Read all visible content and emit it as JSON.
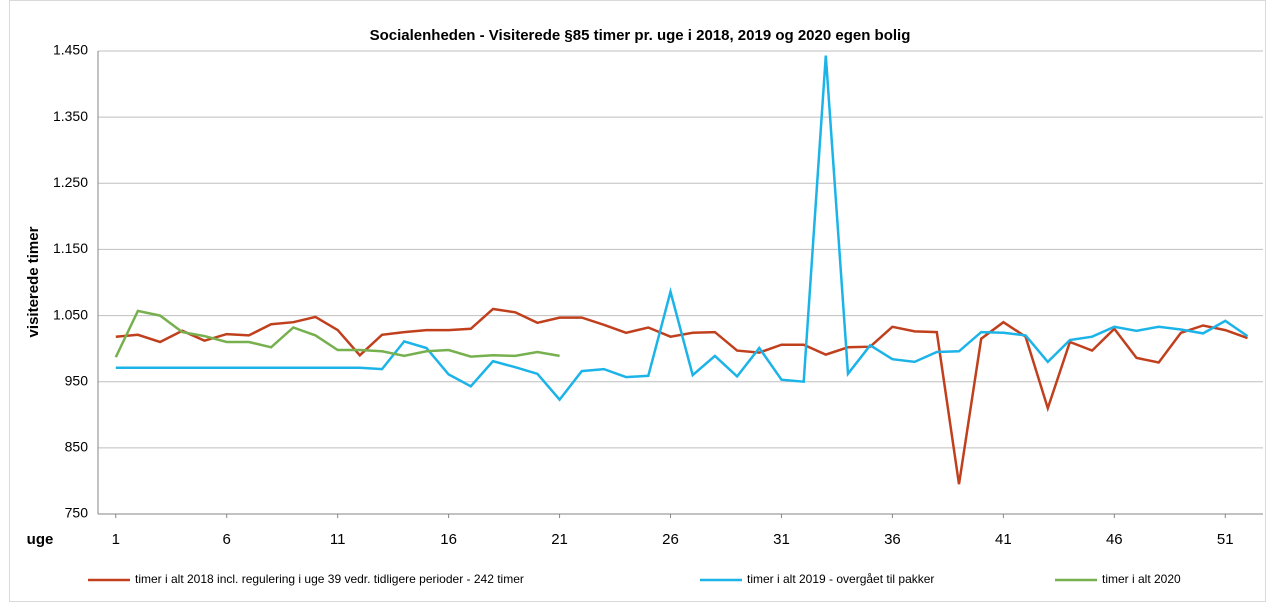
{
  "chart_data": {
    "type": "line",
    "title": "Socialenheden - Visiterede §85 timer pr. uge i 2018, 2019 og 2020 egen bolig",
    "xlabel": "uge",
    "ylabel": "visiterede timer",
    "x": [
      1,
      2,
      3,
      4,
      5,
      6,
      7,
      8,
      9,
      10,
      11,
      12,
      13,
      14,
      15,
      16,
      17,
      18,
      19,
      20,
      21,
      22,
      23,
      24,
      25,
      26,
      27,
      28,
      29,
      30,
      31,
      32,
      33,
      34,
      35,
      36,
      37,
      38,
      39,
      40,
      41,
      42,
      43,
      44,
      45,
      46,
      47,
      48,
      49,
      50,
      51,
      52
    ],
    "xlim": [
      0.2,
      52.7
    ],
    "xticks": [
      1,
      6,
      11,
      16,
      21,
      26,
      31,
      36,
      41,
      46,
      51
    ],
    "ylim": [
      750,
      1450
    ],
    "yticks": [
      {
        "value": 750,
        "label": "750"
      },
      {
        "value": 850,
        "label": "850"
      },
      {
        "value": 950,
        "label": "950"
      },
      {
        "value": 1050,
        "label": "1.050"
      },
      {
        "value": 1150,
        "label": "1.150"
      },
      {
        "value": 1250,
        "label": "1.250"
      },
      {
        "value": 1350,
        "label": "1.350"
      },
      {
        "value": 1450,
        "label": "1.450"
      }
    ],
    "grid": true,
    "legend": "bottom",
    "series": [
      {
        "name": "timer i alt 2018 incl. regulering i uge 39 vedr. tidligere perioder - 242 timer",
        "color": "#c0401e",
        "values": [
          1018,
          1021,
          1010,
          1027,
          1012,
          1022,
          1020,
          1037,
          1040,
          1048,
          1028,
          990,
          1021,
          1025,
          1028,
          1028,
          1030,
          1060,
          1055,
          1039,
          1047,
          1047,
          1036,
          1024,
          1032,
          1018,
          1024,
          1025,
          997,
          994,
          1006,
          1006,
          991,
          1002,
          1003,
          1033,
          1026,
          1025,
          795,
          1015,
          1040,
          1018,
          910,
          1010,
          997,
          1030,
          986,
          979,
          1024,
          1035,
          1028,
          1016
        ]
      },
      {
        "name": "timer i alt 2019 - overgået til pakker",
        "color": "#1cb4e8",
        "values": [
          971,
          971,
          971,
          971,
          971,
          971,
          971,
          971,
          971,
          971,
          971,
          971,
          969,
          1011,
          1001,
          961,
          943,
          981,
          972,
          962,
          923,
          966,
          969,
          957,
          959,
          1086,
          960,
          989,
          958,
          1001,
          953,
          950,
          1443,
          962,
          1005,
          984,
          980,
          995,
          996,
          1025,
          1024,
          1020,
          980,
          1013,
          1018,
          1033,
          1027,
          1033,
          1029,
          1023,
          1042,
          1019
        ]
      },
      {
        "name": "timer i alt 2020",
        "color": "#77b04f",
        "values": [
          987,
          1057,
          1050,
          1025,
          1019,
          1010,
          1010,
          1002,
          1032,
          1020,
          998,
          998,
          996,
          989,
          996,
          998,
          988,
          990,
          989,
          995,
          989,
          null,
          null,
          null,
          null,
          null,
          null,
          null,
          null,
          null,
          null,
          null,
          null,
          null,
          null,
          null,
          null,
          null,
          null,
          null,
          null,
          null,
          null,
          null,
          null,
          null,
          null,
          null,
          null,
          null,
          null,
          null
        ]
      }
    ]
  }
}
